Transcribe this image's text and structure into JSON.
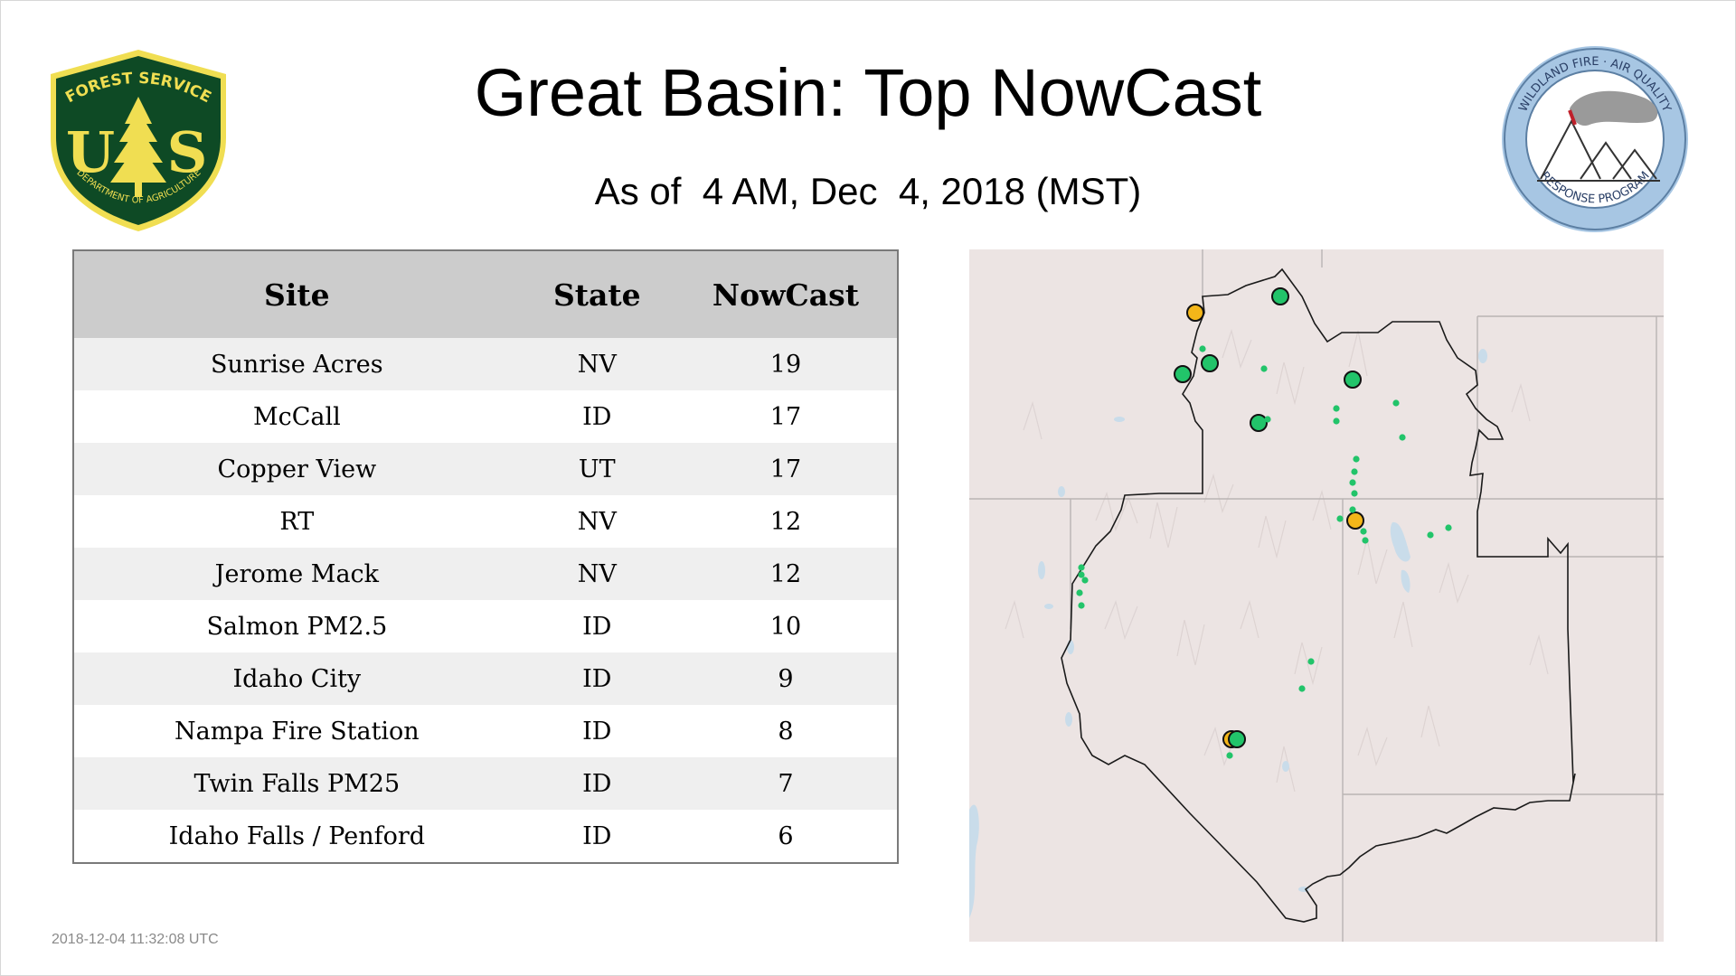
{
  "header": {
    "title": "Great Basin: Top NowCast",
    "subtitle": "As of  4 AM, Dec  4, 2018 (MST)"
  },
  "logos": {
    "usfs": {
      "top_text": "FOREST SERVICE",
      "bottom_text": "DEPARTMENT OF AGRICULTURE",
      "letters": "US"
    },
    "wfaq": {
      "top_text": "WILDLAND FIRE · AIR QUALITY",
      "bottom_text": "RESPONSE PROGRAM"
    }
  },
  "table": {
    "columns": [
      "Site",
      "State",
      "NowCast"
    ],
    "rows": [
      {
        "site": "Sunrise Acres",
        "state": "NV",
        "nowcast": "19"
      },
      {
        "site": "McCall",
        "state": "ID",
        "nowcast": "17"
      },
      {
        "site": "Copper View",
        "state": "UT",
        "nowcast": "17"
      },
      {
        "site": "RT",
        "state": "NV",
        "nowcast": "12"
      },
      {
        "site": "Jerome Mack",
        "state": "NV",
        "nowcast": "12"
      },
      {
        "site": "Salmon PM2.5",
        "state": "ID",
        "nowcast": "10"
      },
      {
        "site": "Idaho City",
        "state": "ID",
        "nowcast": "9"
      },
      {
        "site": "Nampa Fire Station",
        "state": "ID",
        "nowcast": "8"
      },
      {
        "site": "Twin Falls PM25",
        "state": "ID",
        "nowcast": "7"
      },
      {
        "site": "Idaho Falls / Penford",
        "state": "ID",
        "nowcast": "6"
      }
    ]
  },
  "footer": {
    "timestamp": "2018-12-04 11:32:08 UTC"
  },
  "colors": {
    "good": "#22c46a",
    "moderate": "#f4b619",
    "usfs_green": "#0e4a25",
    "usfs_yellow": "#f0de52",
    "table_header": "#cccccc",
    "row_alt": "#efefef",
    "map_land": "#ece4e3",
    "map_water": "#c9dcea"
  },
  "map": {
    "monitors": [
      {
        "category": "moderate",
        "size": "large"
      },
      {
        "category": "good",
        "size": "large"
      },
      {
        "category": "good",
        "size": "large"
      },
      {
        "category": "good",
        "size": "large"
      },
      {
        "category": "good",
        "size": "large"
      },
      {
        "category": "good",
        "size": "large"
      },
      {
        "category": "moderate",
        "size": "large"
      },
      {
        "category": "moderate",
        "size": "large"
      },
      {
        "category": "good",
        "size": "large"
      },
      {
        "category": "good",
        "size": "small"
      },
      {
        "category": "good",
        "size": "small"
      },
      {
        "category": "good",
        "size": "small"
      },
      {
        "category": "good",
        "size": "small"
      },
      {
        "category": "good",
        "size": "small"
      },
      {
        "category": "good",
        "size": "small"
      },
      {
        "category": "good",
        "size": "small"
      },
      {
        "category": "good",
        "size": "small"
      },
      {
        "category": "good",
        "size": "small"
      },
      {
        "category": "good",
        "size": "small"
      },
      {
        "category": "good",
        "size": "small"
      },
      {
        "category": "good",
        "size": "small"
      },
      {
        "category": "good",
        "size": "small"
      },
      {
        "category": "good",
        "size": "small"
      },
      {
        "category": "good",
        "size": "small"
      },
      {
        "category": "good",
        "size": "small"
      },
      {
        "category": "good",
        "size": "small"
      },
      {
        "category": "good",
        "size": "small"
      },
      {
        "category": "good",
        "size": "small"
      },
      {
        "category": "good",
        "size": "small"
      },
      {
        "category": "good",
        "size": "small"
      },
      {
        "category": "good",
        "size": "small"
      },
      {
        "category": "good",
        "size": "small"
      },
      {
        "category": "good",
        "size": "small"
      },
      {
        "category": "good",
        "size": "small"
      }
    ]
  }
}
